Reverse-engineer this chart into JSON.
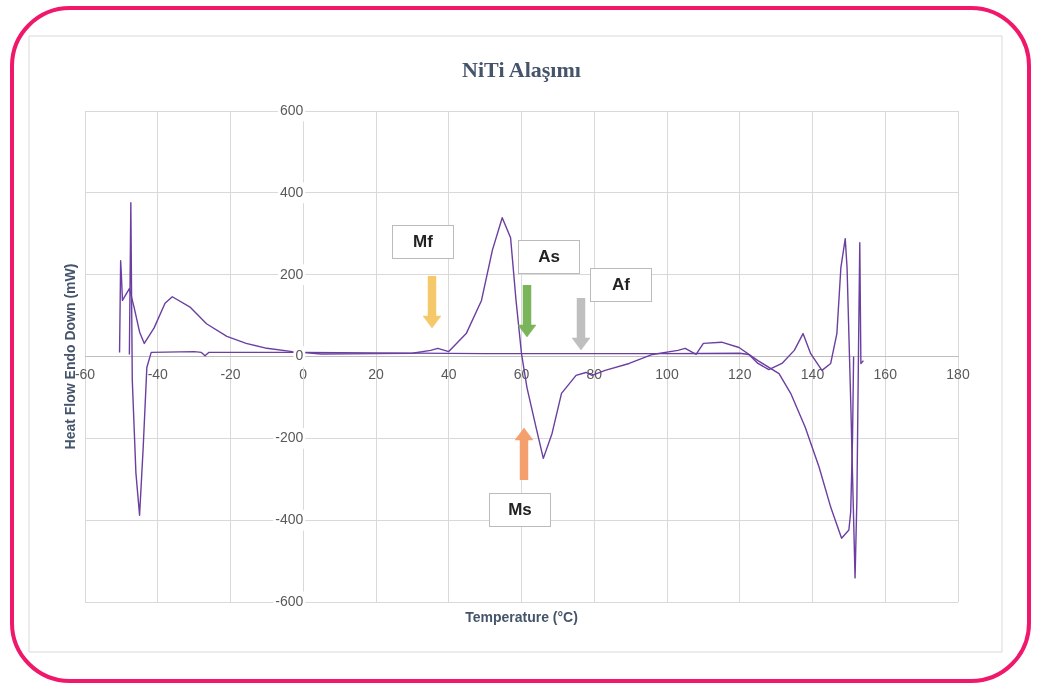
{
  "chart_data": {
    "type": "line",
    "title": "NiTi Alaşımı",
    "xlabel": "Temperature (°C)",
    "ylabel": "Heat Flow Endo Down (mW)",
    "xlim": [
      -60,
      180
    ],
    "xticks": [
      -60,
      -40,
      -20,
      0,
      20,
      40,
      60,
      80,
      100,
      120,
      140,
      160,
      180
    ],
    "ylim": [
      -600,
      600
    ],
    "yticks": [
      -600,
      -400,
      -200,
      0,
      200,
      400,
      600
    ],
    "grid": true,
    "marker": "none",
    "line_style": "solid",
    "series": [
      {
        "color": "#6b3fa0",
        "x": [
          -50.5,
          -50.2,
          -50,
          -49.7,
          -47.8,
          -46.5,
          -45,
          -43.7,
          -41,
          -38,
          -36,
          -31,
          -26.6,
          -21,
          -15.7,
          -10,
          -3,
          5,
          20,
          30,
          35,
          37,
          40,
          44.8,
          49,
          52,
          54.7,
          57,
          58.5,
          60,
          61.5,
          64,
          66,
          68.4,
          71,
          75,
          77.7,
          79.4,
          83,
          89.6,
          96,
          103,
          105,
          108,
          110,
          115,
          119.8,
          125,
          130.8,
          134,
          138,
          141.8,
          145,
          148,
          150,
          150.5,
          151,
          151.3
        ],
        "values": [
          10,
          234,
          200,
          137,
          166,
          120,
          60,
          32,
          70,
          130,
          146,
          120,
          80,
          49,
          32,
          20,
          12,
          6,
          7,
          8,
          15,
          20,
          12,
          56,
          137,
          260,
          339,
          290,
          137,
          7,
          -76,
          -173,
          -249,
          -188,
          -90,
          -46,
          -39,
          -46,
          -34,
          -17,
          5,
          15,
          20,
          5,
          32,
          35,
          22,
          -10,
          -42,
          -90,
          -173,
          -270,
          -368,
          -444,
          -424,
          -380,
          -200,
          0
        ]
      },
      {
        "color": "#6b3fa0",
        "x": [
          -47.8,
          -47.4,
          -47.2,
          -47,
          -46,
          -45,
          -44,
          -43,
          -41.8,
          -30,
          -28,
          -27,
          -26,
          0,
          50,
          100,
          120,
          122.5,
          125,
          128,
          131.6,
          135,
          137.4,
          139.5,
          142.6,
          145,
          146.7,
          147.8,
          149,
          149.5,
          150.5,
          151.7,
          152.2,
          152.7,
          153,
          153.3,
          154
        ],
        "values": [
          5,
          376,
          154,
          -58,
          -285,
          -388,
          -222,
          -27,
          10,
          12,
          10,
          2,
          10,
          10,
          7,
          7,
          8,
          5,
          -17,
          -32,
          -17,
          15,
          56,
          7,
          -34,
          -17,
          56,
          217,
          288,
          217,
          -107,
          -541,
          -351,
          56,
          278,
          -17,
          -10
        ]
      }
    ],
    "annotations": [
      "Mf",
      "As",
      "Af",
      "Ms"
    ]
  }
}
